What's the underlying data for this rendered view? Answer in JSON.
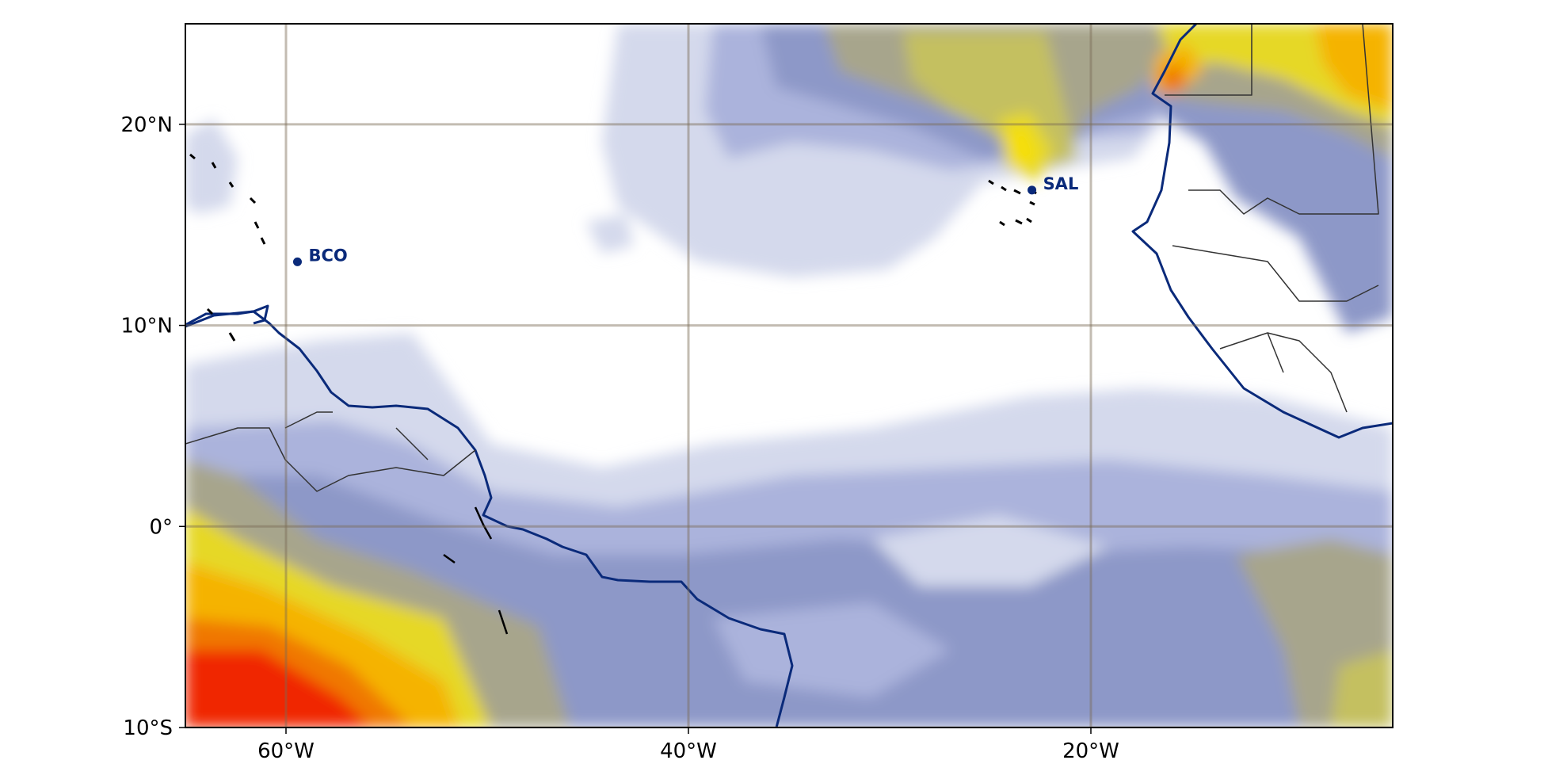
{
  "map": {
    "projection": "PlateCarree",
    "extent": {
      "lon": [
        -65,
        -5
      ],
      "lat": [
        -10,
        25
      ]
    },
    "field_color_scale": [
      "#ffffff",
      "#d4d9ec",
      "#abb3dc",
      "#8d98c8",
      "#a7a58c",
      "#c4c060",
      "#e6d826",
      "#f7df00",
      "#f5b300",
      "#f07800",
      "#f02800"
    ],
    "gridlines": true,
    "coastline_color": "#0a2a7a",
    "border_color": "#333333",
    "stations": [
      {
        "name": "BCO",
        "lon": -59.43,
        "lat": 13.16,
        "color": "#0a2a7a"
      },
      {
        "name": "SAL",
        "lon": -22.93,
        "lat": 16.73,
        "color": "#0a2a7a"
      }
    ],
    "x_ticks": [
      {
        "value": -60,
        "label": "60°W"
      },
      {
        "value": -40,
        "label": "40°W"
      },
      {
        "value": -20,
        "label": "20°W"
      }
    ],
    "y_ticks": [
      {
        "value": 20,
        "label": "20°N"
      },
      {
        "value": 10,
        "label": "10°N"
      },
      {
        "value": 0,
        "label": "0°"
      },
      {
        "value": -10,
        "label": "10°S"
      }
    ]
  }
}
